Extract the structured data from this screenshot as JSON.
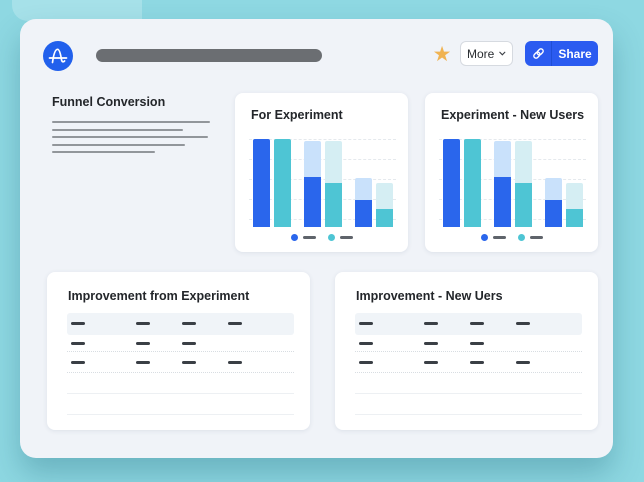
{
  "colors": {
    "background_teal": "#8ed8e2",
    "surface": "#f0f3f8",
    "panel": "#ffffff",
    "accent_blue": "#2b5bf0",
    "star_gold": "#f0b352",
    "heading_text": "#23262a",
    "table_header_bg": "#f0f4f8",
    "placeholder_dash": "#3a3f45"
  },
  "palette": {
    "blue": "#2a66ec",
    "teal": "#4ec5d4",
    "blue_light": "#c9e1fb",
    "teal_light": "#d5eef3"
  },
  "header": {
    "logo_icon": "amplitude-logo",
    "star_icon": "star-icon",
    "star_glyph": "★",
    "more_label": "More",
    "chevron_icon": "chevron-down-icon",
    "link_icon": "link-icon",
    "share_label": "Share"
  },
  "summary": {
    "title": "Funnel Conversion",
    "placeholder_line_widths": [
      158,
      131,
      156,
      133,
      103
    ]
  },
  "charts": [
    {
      "title": "For Experiment",
      "type": "bar",
      "groups": [
        [
          {
            "color": "blue",
            "total_pct": 100,
            "solid_pct": 100
          },
          {
            "color": "teal",
            "total_pct": 100,
            "solid_pct": 100
          }
        ],
        [
          {
            "color": "blue",
            "total_pct": 98,
            "solid_pct": 57
          },
          {
            "color": "teal",
            "total_pct": 98,
            "solid_pct": 50
          }
        ],
        [
          {
            "color": "blue",
            "total_pct": 56,
            "solid_pct": 31
          },
          {
            "color": "teal",
            "total_pct": 50,
            "solid_pct": 20
          }
        ]
      ],
      "legend": [
        "blue",
        "teal"
      ],
      "gridline_tops": [
        0,
        20,
        40,
        60,
        80
      ]
    },
    {
      "title": "Experiment - New Users",
      "type": "bar",
      "groups": [
        [
          {
            "color": "blue",
            "total_pct": 100,
            "solid_pct": 100
          },
          {
            "color": "teal",
            "total_pct": 100,
            "solid_pct": 100
          }
        ],
        [
          {
            "color": "blue",
            "total_pct": 98,
            "solid_pct": 57
          },
          {
            "color": "teal",
            "total_pct": 98,
            "solid_pct": 50
          }
        ],
        [
          {
            "color": "blue",
            "total_pct": 56,
            "solid_pct": 31
          },
          {
            "color": "teal",
            "total_pct": 50,
            "solid_pct": 20
          }
        ]
      ],
      "legend": [
        "blue",
        "teal"
      ],
      "gridline_tops": [
        0,
        20,
        40,
        60,
        80
      ]
    }
  ],
  "tables": [
    {
      "title": "Improvement from Experiment",
      "header_dash_count": 4,
      "data_rows": [
        {
          "dash_count": 3
        },
        {
          "dash_count": 4
        }
      ],
      "empty_row_count": 2
    },
    {
      "title": "Improvement - New Uers",
      "header_dash_count": 4,
      "data_rows": [
        {
          "dash_count": 3
        },
        {
          "dash_count": 4
        }
      ],
      "empty_row_count": 2
    }
  ]
}
